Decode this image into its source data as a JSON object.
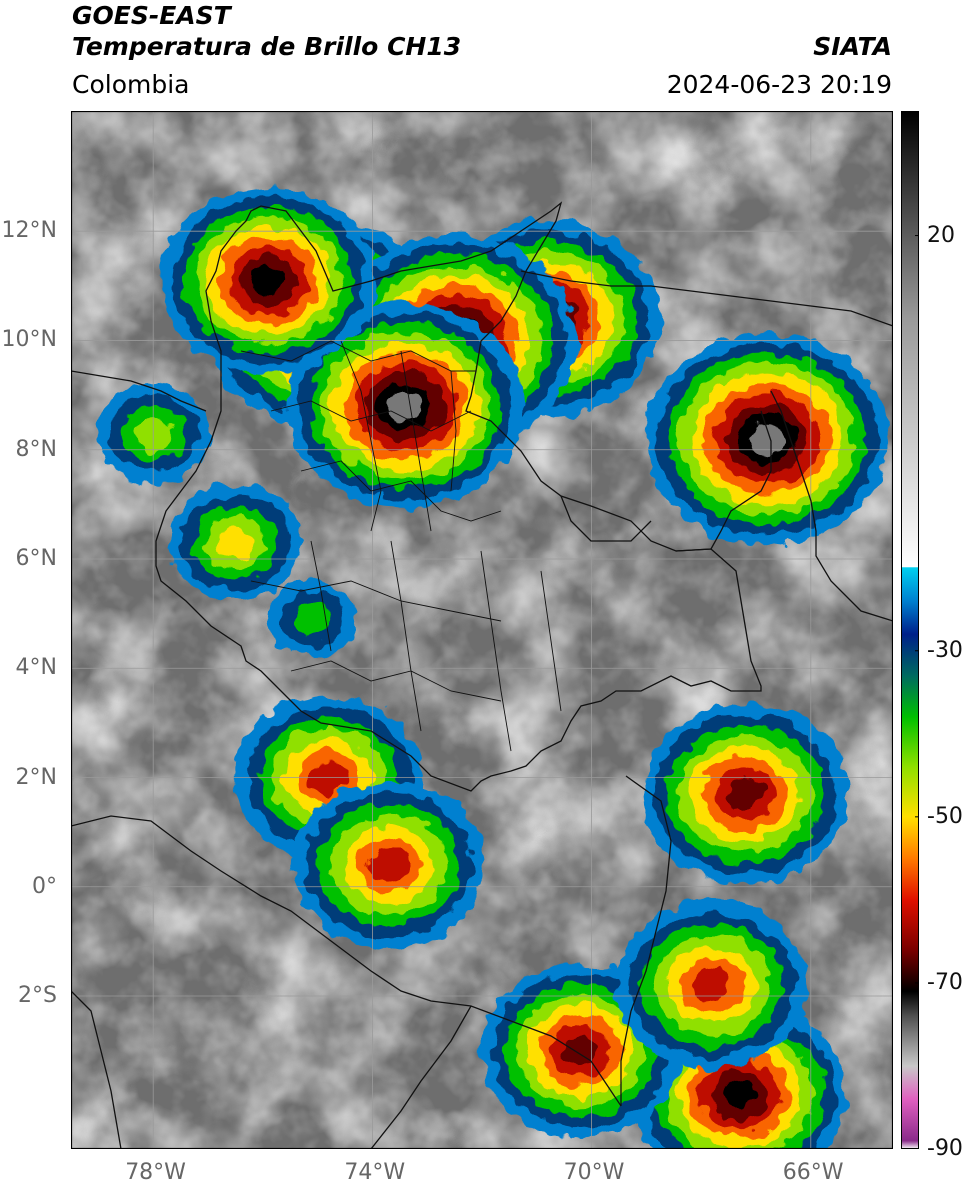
{
  "header": {
    "title_line1": "GOES-EAST",
    "title_line2": "Temperatura de Brillo CH13",
    "region": "Colombia",
    "source": "SIATA",
    "datetime": "2024-06-23 20:19"
  },
  "map": {
    "lon_range": [
      -79.5,
      -64.5
    ],
    "lat_range": [
      -4.8,
      14.2
    ],
    "lat_labels": [
      "12°N",
      "10°N",
      "8°N",
      "6°N",
      "4°N",
      "2°N",
      "0°",
      "2°S"
    ],
    "lat_values": [
      12,
      10,
      8,
      6,
      4,
      2,
      0,
      -2
    ],
    "lon_labels": [
      "78°W",
      "74°W",
      "70°W",
      "66°W"
    ],
    "lon_values": [
      -78,
      -74,
      -70,
      -66
    ],
    "gridlines": true
  },
  "colorbar": {
    "range": [
      -90,
      35
    ],
    "tick_labels": [
      "20",
      "-30",
      "-50",
      "-70",
      "-90"
    ],
    "tick_values": [
      20,
      -30,
      -50,
      -70,
      -90
    ],
    "stops": [
      {
        "value": -90,
        "color": "#ffffff"
      },
      {
        "value": -89,
        "color": "#8a2a8a"
      },
      {
        "value": -84,
        "color": "#e060c0"
      },
      {
        "value": -80,
        "color": "#c8c8c8"
      },
      {
        "value": -74,
        "color": "#505050"
      },
      {
        "value": -71,
        "color": "#000000"
      },
      {
        "value": -66,
        "color": "#7a0000"
      },
      {
        "value": -60,
        "color": "#e01000"
      },
      {
        "value": -55,
        "color": "#ff7a00"
      },
      {
        "value": -50,
        "color": "#ffe000"
      },
      {
        "value": -44,
        "color": "#90e000"
      },
      {
        "value": -38,
        "color": "#00c000"
      },
      {
        "value": -33,
        "color": "#006a60"
      },
      {
        "value": -28,
        "color": "#00208a"
      },
      {
        "value": -24,
        "color": "#0080d0"
      },
      {
        "value": -20,
        "color": "#00d0f0"
      },
      {
        "value": -19.9,
        "color": "#ffffff"
      },
      {
        "value": 10,
        "color": "#9a9a9a"
      },
      {
        "value": 35,
        "color": "#000000"
      }
    ]
  },
  "storm_cells": [
    {
      "lon": -70.8,
      "lat": 10.4,
      "min_temp": -75
    },
    {
      "lon": -66.8,
      "lat": 8.2,
      "min_temp": -80
    },
    {
      "lon": -74.9,
      "lat": 10.3,
      "min_temp": -78
    },
    {
      "lon": -72.5,
      "lat": 10.0,
      "min_temp": -80
    },
    {
      "lon": -73.4,
      "lat": 8.8,
      "min_temp": -78
    },
    {
      "lon": -75.9,
      "lat": 11.1,
      "min_temp": -72
    },
    {
      "lon": -67.2,
      "lat": 1.7,
      "min_temp": -70
    },
    {
      "lon": -74.8,
      "lat": 2.0,
      "min_temp": -65
    },
    {
      "lon": -73.7,
      "lat": 0.4,
      "min_temp": -66
    },
    {
      "lon": -67.3,
      "lat": -3.8,
      "min_temp": -72
    },
    {
      "lon": -70.2,
      "lat": -3.0,
      "min_temp": -68
    },
    {
      "lon": -67.8,
      "lat": -1.8,
      "min_temp": -66
    },
    {
      "lon": -78.0,
      "lat": 8.3,
      "min_temp": -45
    },
    {
      "lon": -76.5,
      "lat": 6.3,
      "min_temp": -50
    },
    {
      "lon": -75.1,
      "lat": 4.9,
      "min_temp": -38
    }
  ]
}
